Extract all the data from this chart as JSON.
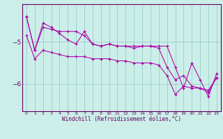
{
  "xlabel": "Windchill (Refroidissement éolien,°C)",
  "ylabel": "",
  "bg_color": "#cceee8",
  "line_color": "#aa00aa",
  "grid_color": "#99cccc",
  "axis_color": "#660066",
  "label_color": "#660066",
  "xlim": [
    -0.5,
    23.5
  ],
  "ylim": [
    -6.65,
    -4.1
  ],
  "yticks": [
    -6,
    -5
  ],
  "xticks": [
    0,
    1,
    2,
    3,
    4,
    5,
    6,
    7,
    8,
    9,
    10,
    11,
    12,
    13,
    14,
    15,
    16,
    17,
    18,
    19,
    20,
    21,
    22,
    23
  ],
  "series1": {
    "x": [
      0,
      1,
      2,
      3,
      4,
      5,
      6,
      7,
      8,
      9,
      10,
      11,
      12,
      13,
      14,
      15,
      16,
      17,
      18,
      19,
      20,
      21,
      22,
      23
    ],
    "y": [
      -4.4,
      -5.2,
      -4.55,
      -4.65,
      -4.8,
      -4.95,
      -5.05,
      -4.75,
      -5.05,
      -5.1,
      -5.05,
      -5.1,
      -5.1,
      -5.15,
      -5.1,
      -5.1,
      -5.15,
      -5.6,
      -5.9,
      -5.8,
      -6.05,
      -6.1,
      -6.2,
      -5.85
    ]
  },
  "series2": {
    "x": [
      0,
      1,
      2,
      3,
      4,
      5,
      6,
      7,
      8,
      9,
      10,
      11,
      12,
      13,
      14,
      15,
      16,
      17,
      18,
      19,
      20,
      21,
      22,
      23
    ],
    "y": [
      -4.4,
      -5.2,
      -4.65,
      -4.7,
      -4.75,
      -4.75,
      -4.75,
      -4.85,
      -5.05,
      -5.1,
      -5.05,
      -5.1,
      -5.1,
      -5.1,
      -5.1,
      -5.1,
      -5.1,
      -5.1,
      -5.6,
      -6.1,
      -5.5,
      -5.9,
      -6.3,
      -5.75
    ]
  },
  "series3": {
    "x": [
      0,
      1,
      2,
      3,
      4,
      5,
      6,
      7,
      8,
      9,
      10,
      11,
      12,
      13,
      14,
      15,
      16,
      17,
      18,
      19,
      20,
      21,
      22,
      23
    ],
    "y": [
      -4.85,
      -5.4,
      -5.2,
      -5.25,
      -5.3,
      -5.35,
      -5.35,
      -5.35,
      -5.4,
      -5.4,
      -5.4,
      -5.45,
      -5.45,
      -5.5,
      -5.5,
      -5.5,
      -5.55,
      -5.8,
      -6.25,
      -6.05,
      -6.1,
      -6.1,
      -6.15,
      -5.85
    ]
  }
}
